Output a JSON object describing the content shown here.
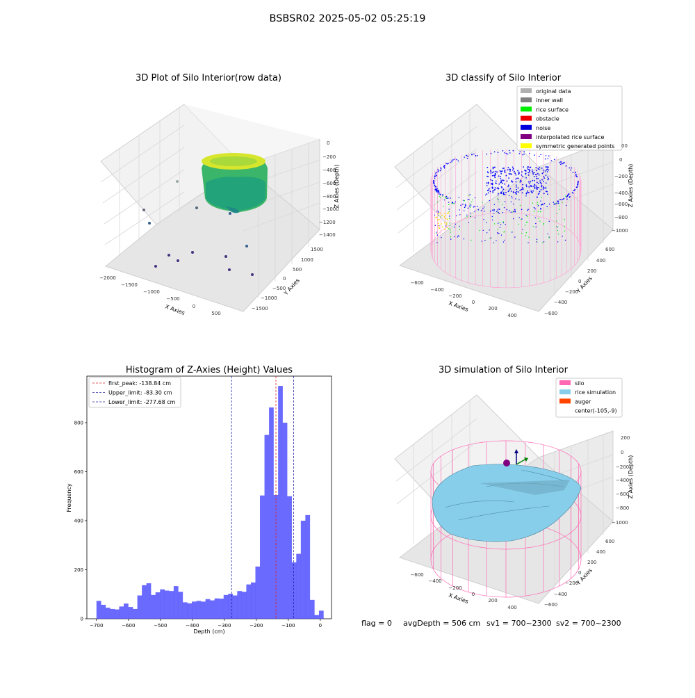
{
  "suptitle": "BSBSR02 2025-05-02 05:25:19",
  "colors": {
    "hist_bar": "#5050ff",
    "first_peak": "#dd2222",
    "limit": "#2222aa",
    "silo": "#ff69b4",
    "rice": "#87ceeb",
    "auger": "#ff4500",
    "noise": "#0000ff",
    "rice_surface": "#00ee00"
  },
  "panel1": {
    "title": "3D Plot of Silo Interior(row data)",
    "xlabel": "X Axies",
    "ylabel": "Y Axies",
    "zlabel": "Z Axies (Depth)",
    "x_ticks": [
      "−2000",
      "−1500",
      "−1000",
      "−500",
      "0",
      "500"
    ],
    "y_ticks": [
      "1500",
      "1000",
      "500",
      "0",
      "−500",
      "−1000",
      "−1500"
    ],
    "z_ticks": [
      "0",
      "−200",
      "−400",
      "−600",
      "−800",
      "−1000",
      "−1200",
      "−1400"
    ]
  },
  "panel2": {
    "title": "3D classify of Silo Interior",
    "xlabel": "X Axies",
    "ylabel": "Y Axies",
    "zlabel": "Z Axies (Depth)",
    "x_ticks": [
      "−600",
      "−400",
      "−200",
      "0",
      "200",
      "400"
    ],
    "y_ticks": [
      "600",
      "400",
      "200",
      "0",
      "−200",
      "−400",
      "−600"
    ],
    "z_ticks": [
      "0",
      "−200",
      "−400",
      "−600",
      "−800",
      "−1000"
    ],
    "z_top_partial": "00",
    "legend": [
      {
        "label": "original data",
        "color": "#b0b0b0"
      },
      {
        "label": "inner wall",
        "color": "#808080"
      },
      {
        "label": "rice surface",
        "color": "#00ee00"
      },
      {
        "label": "obstacle",
        "color": "#ee0000"
      },
      {
        "label": "noise",
        "color": "#0000dd"
      },
      {
        "label": "interpolated rice surface",
        "color": "#800080"
      },
      {
        "label": "symmetric generated points",
        "color": "#ffff00"
      }
    ]
  },
  "panel3": {
    "title": "3D simulation of Silo Interior",
    "xlabel": "X Axies",
    "ylabel": "Y Axies",
    "zlabel": "Z Axies (Depth)",
    "x_ticks": [
      "−600",
      "−400",
      "−200",
      "0",
      "200",
      "400"
    ],
    "y_ticks": [
      "600",
      "400",
      "200",
      "0",
      "−200",
      "−400",
      "−600"
    ],
    "z_ticks": [
      "200",
      "0",
      "−200",
      "−400",
      "−600",
      "−800",
      "−1000"
    ],
    "legend": [
      {
        "label": "silo",
        "color": "#ff69b4"
      },
      {
        "label": "rice simulation",
        "color": "#87ceeb"
      },
      {
        "label": "auger",
        "color": "#ff4500"
      },
      {
        "label": "center(-105,-9)",
        "color": ""
      }
    ]
  },
  "footer": {
    "flag": "flag = 0",
    "avg": "avgDepth = 506 cm",
    "sv1": "sv1 = 700~2300",
    "sv2": "sv2 = 700~2300"
  },
  "chart_data": {
    "type": "bar",
    "title": "Histogram of Z-Axies (Height) Values",
    "xlabel": "Depth (cm)",
    "ylabel": "Frequency",
    "xlim": [
      -730,
      35
    ],
    "ylim": [
      0,
      990
    ],
    "x_ticks": [
      -700,
      -600,
      -500,
      -400,
      -300,
      -200,
      -100,
      0
    ],
    "y_ticks": [
      0,
      200,
      400,
      600,
      800
    ],
    "bin_start": -700,
    "bin_width": 14.2,
    "values": [
      73,
      57,
      45,
      40,
      38,
      50,
      62,
      48,
      40,
      95,
      137,
      145,
      97,
      108,
      120,
      115,
      113,
      133,
      110,
      67,
      63,
      70,
      73,
      70,
      80,
      75,
      83,
      82,
      97,
      102,
      95,
      113,
      110,
      140,
      148,
      213,
      503,
      750,
      862,
      505,
      950,
      800,
      500,
      230,
      265,
      400,
      423,
      77,
      15,
      33
    ],
    "lines": [
      {
        "label": "first_peak: -138.84 cm",
        "x": -138.84,
        "style": "first_peak"
      },
      {
        "label": "Upper_limit: -83.30 cm",
        "x": -83.3,
        "style": "limit"
      },
      {
        "label": "Lower_limit: -277.68 cm",
        "x": -277.68,
        "style": "limit"
      }
    ],
    "legend_position": "upper-left"
  }
}
